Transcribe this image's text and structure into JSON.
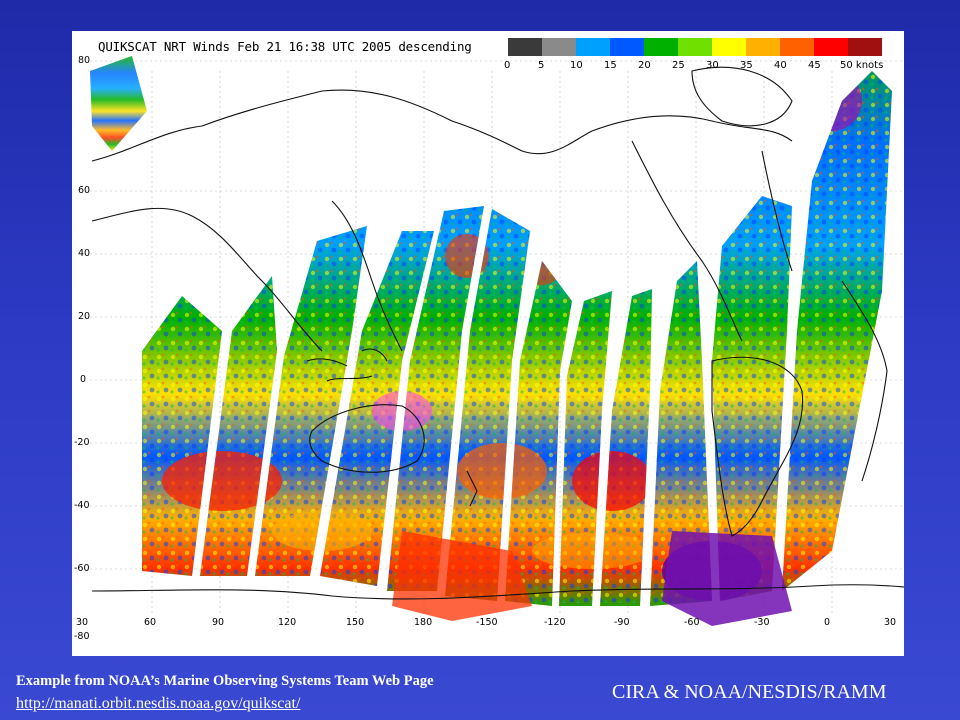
{
  "map": {
    "title": "QUIKSCAT NRT Winds Feb 21 16:38 UTC 2005 descending",
    "colorbar": {
      "colors": [
        "#3a3a3a",
        "#8a8a8a",
        "#00a0ff",
        "#0058ff",
        "#00b000",
        "#70e000",
        "#ffff00",
        "#ffb000",
        "#ff6000",
        "#ff0000",
        "#a01010",
        "#c06020",
        "#ff40ff",
        "#b000b0",
        "#6000a0"
      ],
      "ticks": [
        "0",
        "5",
        "10",
        "15",
        "20",
        "25",
        "30",
        "35",
        "40",
        "45",
        "50 knots"
      ]
    },
    "lat_labels": [
      "80",
      "60",
      "40",
      "20",
      "0",
      "-20",
      "-40",
      "-60",
      "-80"
    ],
    "lon_labels": [
      "30",
      "60",
      "90",
      "120",
      "150",
      "180",
      "-150",
      "-120",
      "-90",
      "-60",
      "-30",
      "0",
      "30"
    ]
  },
  "caption": {
    "source": "Example from NOAA’s Marine Observing Systems Team Web Page",
    "url": "http://manati.orbit.nesdis.noaa.gov/quikscat/"
  },
  "credit": "CIRA & NOAA/NESDIS/RAMM"
}
